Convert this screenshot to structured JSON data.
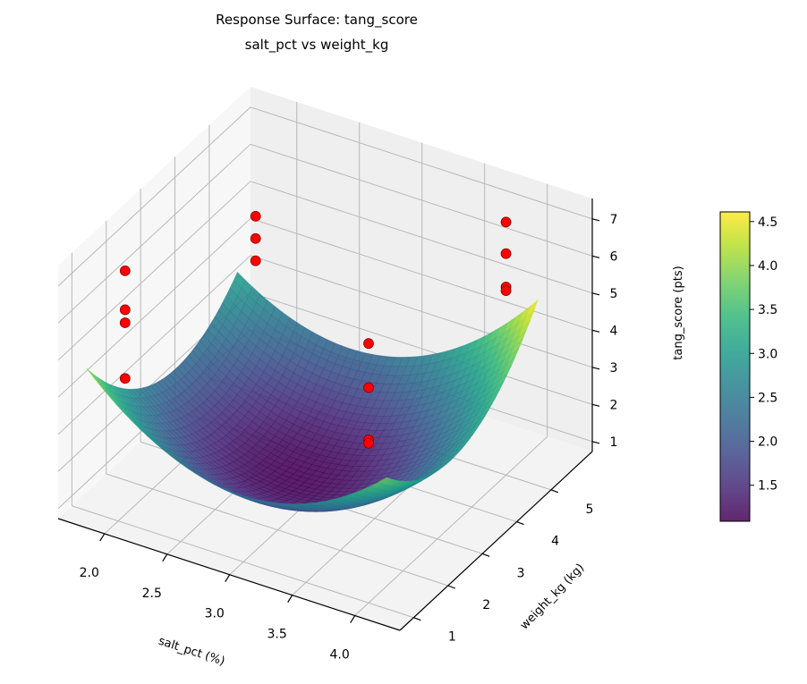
{
  "chart_data": {
    "type": "surface3d",
    "title": "Response Surface: tang_score",
    "subtitle": "salt_pct vs weight_kg",
    "xlabel": "salt_pct (%)",
    "ylabel": "weight_kg (kg)",
    "zlabel": "tang_score (pts)",
    "xlim": [
      1.63,
      4.36
    ],
    "ylim": [
      0.6,
      6.2
    ],
    "zlim": [
      0.73,
      7.55
    ],
    "x_ticks": [
      "2.0",
      "2.5",
      "3.0",
      "3.5",
      "4.0"
    ],
    "y_ticks": [
      "1",
      "2",
      "3",
      "4",
      "5"
    ],
    "z_ticks": [
      "1",
      "2",
      "3",
      "4",
      "5",
      "6",
      "7"
    ],
    "grid": true,
    "colormap": "viridis",
    "surface": {
      "x": [
        1.8,
        2.4,
        3.0,
        3.6,
        4.2
      ],
      "y": [
        0.8,
        1.9,
        3.0,
        4.1,
        5.2
      ],
      "z": [
        [
          4.8,
          3.3,
          2.75,
          3.15,
          4.5
        ],
        [
          3.3,
          1.94,
          1.53,
          2.06,
          3.55
        ],
        [
          2.6,
          1.38,
          1.1,
          1.78,
          3.4
        ],
        [
          2.7,
          1.61,
          1.48,
          2.29,
          4.05
        ],
        [
          3.6,
          2.65,
          2.65,
          3.6,
          5.5
        ]
      ]
    },
    "scatter": {
      "color": "#ff0000",
      "points": [
        {
          "x": 2.0,
          "y": 1.2,
          "z": 7.3
        },
        {
          "x": 2.0,
          "y": 1.2,
          "z": 6.25
        },
        {
          "x": 2.0,
          "y": 1.2,
          "z": 5.9
        },
        {
          "x": 2.0,
          "y": 1.2,
          "z": 4.4
        },
        {
          "x": 2.0,
          "y": 5.0,
          "z": 5.5
        },
        {
          "x": 2.0,
          "y": 5.0,
          "z": 4.9
        },
        {
          "x": 2.0,
          "y": 5.0,
          "z": 4.3
        },
        {
          "x": 4.0,
          "y": 1.0,
          "z": 7.72
        },
        {
          "x": 4.0,
          "y": 1.0,
          "z": 6.53
        },
        {
          "x": 4.0,
          "y": 1.0,
          "z": 5.12
        },
        {
          "x": 4.0,
          "y": 1.0,
          "z": 5.03
        },
        {
          "x": 4.0,
          "y": 5.0,
          "z": 7.55
        },
        {
          "x": 4.0,
          "y": 5.0,
          "z": 6.7
        },
        {
          "x": 4.0,
          "y": 5.0,
          "z": 5.8
        },
        {
          "x": 4.0,
          "y": 5.0,
          "z": 5.7
        }
      ]
    },
    "colorbar": {
      "range": [
        1.09,
        4.61
      ],
      "ticks": [
        "1.5",
        "2.0",
        "2.5",
        "3.0",
        "3.5",
        "4.0",
        "4.5"
      ]
    }
  }
}
